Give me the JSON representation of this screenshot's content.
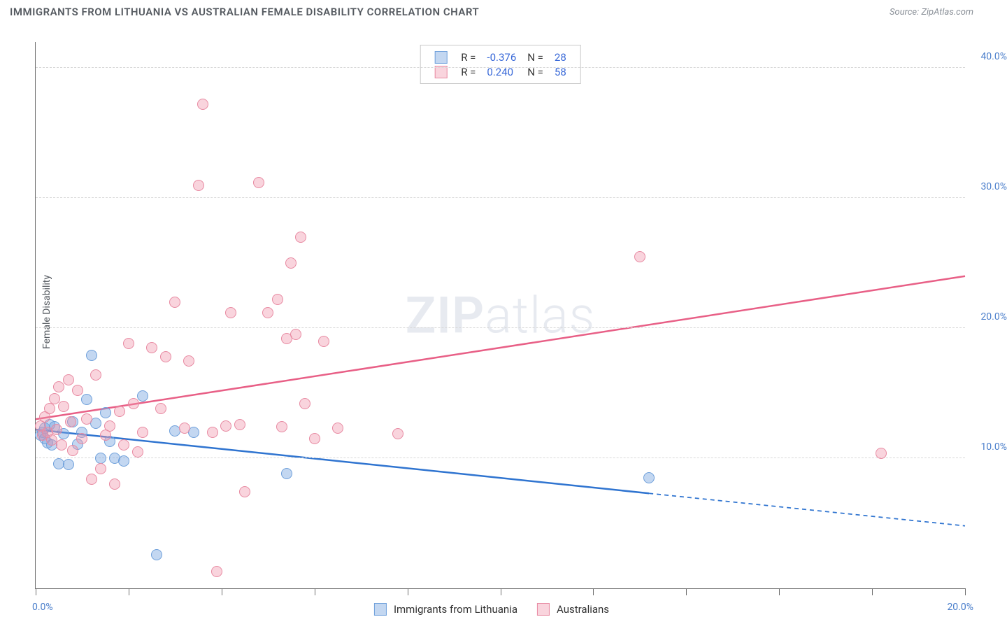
{
  "header": {
    "title": "IMMIGRANTS FROM LITHUANIA VS AUSTRALIAN FEMALE DISABILITY CORRELATION CHART",
    "source_label": "Source:",
    "source_name": "ZipAtlas.com"
  },
  "chart": {
    "type": "scatter",
    "y_axis_title": "Female Disability",
    "watermark_bold": "ZIP",
    "watermark_light": "atlas",
    "xlim": [
      0,
      20
    ],
    "ylim": [
      0,
      42
    ],
    "x_ticks": [
      0,
      2,
      4,
      6,
      8,
      10,
      12,
      14,
      16,
      18,
      20
    ],
    "x_tick_labels_shown": {
      "0": "0.0%",
      "20": "20.0%"
    },
    "y_gridlines": [
      10,
      20,
      30,
      40
    ],
    "y_tick_labels": {
      "10": "10.0%",
      "20": "20.0%",
      "30": "30.0%",
      "40": "40.0%"
    },
    "background_color": "#ffffff",
    "grid_color": "#d8d8d8",
    "axis_color": "#707070",
    "tick_label_color": "#4a7ecb",
    "marker_radius": 8,
    "series": [
      {
        "name": "Immigrants from Lithuania",
        "fill": "rgba(122,167,224,0.45)",
        "stroke": "#6fa0db",
        "line_color": "#2f74d0",
        "line_width": 2.5,
        "R": "-0.376",
        "N": "28",
        "trend": {
          "x1": 0,
          "y1": 12.2,
          "x2": 13.2,
          "y2": 7.3,
          "dash_x2": 20,
          "dash_y2": 4.8
        },
        "points": [
          [
            0.1,
            11.8
          ],
          [
            0.15,
            12.0
          ],
          [
            0.2,
            11.5
          ],
          [
            0.2,
            12.3
          ],
          [
            0.25,
            11.2
          ],
          [
            0.3,
            12.6
          ],
          [
            0.35,
            11.0
          ],
          [
            0.4,
            12.4
          ],
          [
            0.5,
            9.6
          ],
          [
            0.6,
            11.9
          ],
          [
            0.7,
            9.5
          ],
          [
            0.8,
            12.8
          ],
          [
            0.9,
            11.1
          ],
          [
            1.0,
            12.0
          ],
          [
            1.1,
            14.5
          ],
          [
            1.2,
            17.9
          ],
          [
            1.3,
            12.7
          ],
          [
            1.4,
            10.0
          ],
          [
            1.5,
            13.5
          ],
          [
            1.6,
            11.3
          ],
          [
            1.7,
            10.0
          ],
          [
            1.9,
            9.8
          ],
          [
            2.3,
            14.8
          ],
          [
            2.6,
            2.6
          ],
          [
            3.0,
            12.1
          ],
          [
            3.4,
            12.0
          ],
          [
            5.4,
            8.8
          ],
          [
            13.2,
            8.5
          ]
        ]
      },
      {
        "name": "Australians",
        "fill": "rgba(240,148,170,0.40)",
        "stroke": "#e88aa2",
        "line_color": "#e85f86",
        "line_width": 2.5,
        "R": "0.240",
        "N": "58",
        "trend": {
          "x1": 0,
          "y1": 13.0,
          "x2": 20,
          "y2": 24.0
        },
        "points": [
          [
            0.1,
            12.5
          ],
          [
            0.15,
            11.8
          ],
          [
            0.2,
            13.2
          ],
          [
            0.25,
            12.0
          ],
          [
            0.3,
            13.8
          ],
          [
            0.35,
            11.4
          ],
          [
            0.4,
            14.6
          ],
          [
            0.45,
            12.2
          ],
          [
            0.5,
            15.5
          ],
          [
            0.55,
            11.0
          ],
          [
            0.6,
            14.0
          ],
          [
            0.7,
            16.0
          ],
          [
            0.75,
            12.8
          ],
          [
            0.8,
            10.6
          ],
          [
            0.9,
            15.2
          ],
          [
            1.0,
            11.5
          ],
          [
            1.1,
            13.0
          ],
          [
            1.2,
            8.4
          ],
          [
            1.3,
            16.4
          ],
          [
            1.4,
            9.2
          ],
          [
            1.5,
            11.8
          ],
          [
            1.6,
            12.5
          ],
          [
            1.7,
            8.0
          ],
          [
            1.8,
            13.6
          ],
          [
            1.9,
            11.0
          ],
          [
            2.0,
            18.8
          ],
          [
            2.1,
            14.2
          ],
          [
            2.2,
            10.5
          ],
          [
            2.3,
            12.0
          ],
          [
            2.5,
            18.5
          ],
          [
            2.7,
            13.8
          ],
          [
            2.8,
            17.8
          ],
          [
            3.0,
            22.0
          ],
          [
            3.2,
            12.3
          ],
          [
            3.3,
            17.5
          ],
          [
            3.5,
            31.0
          ],
          [
            3.6,
            37.2
          ],
          [
            3.8,
            12.0
          ],
          [
            3.9,
            1.3
          ],
          [
            4.1,
            12.5
          ],
          [
            4.2,
            21.2
          ],
          [
            4.4,
            12.6
          ],
          [
            4.5,
            7.4
          ],
          [
            4.8,
            31.2
          ],
          [
            5.0,
            21.2
          ],
          [
            5.2,
            22.2
          ],
          [
            5.3,
            12.4
          ],
          [
            5.4,
            19.2
          ],
          [
            5.5,
            25.0
          ],
          [
            5.6,
            19.5
          ],
          [
            5.7,
            27.0
          ],
          [
            5.8,
            14.2
          ],
          [
            6.0,
            11.5
          ],
          [
            6.2,
            19.0
          ],
          [
            6.5,
            12.3
          ],
          [
            7.8,
            11.9
          ],
          [
            13.0,
            25.5
          ],
          [
            18.2,
            10.4
          ]
        ]
      }
    ]
  },
  "legend_bottom": {
    "series1_label": "Immigrants from Lithuania",
    "series2_label": "Australians"
  }
}
